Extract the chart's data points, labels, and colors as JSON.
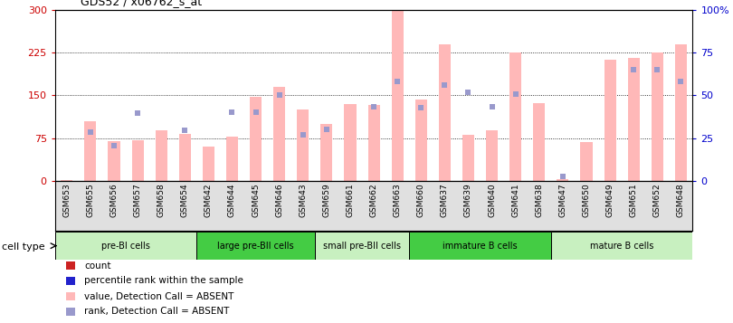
{
  "title": "GDS52 / x06762_s_at",
  "samples": [
    "GSM653",
    "GSM655",
    "GSM656",
    "GSM657",
    "GSM658",
    "GSM654",
    "GSM642",
    "GSM644",
    "GSM645",
    "GSM646",
    "GSM643",
    "GSM659",
    "GSM661",
    "GSM662",
    "GSM663",
    "GSM660",
    "GSM637",
    "GSM639",
    "GSM640",
    "GSM641",
    "GSM638",
    "GSM647",
    "GSM650",
    "GSM649",
    "GSM651",
    "GSM652",
    "GSM648"
  ],
  "bar_values": [
    2,
    105,
    70,
    72,
    88,
    82,
    60,
    78,
    148,
    165,
    125,
    100,
    135,
    133,
    298,
    143,
    240,
    80,
    88,
    225,
    137,
    3,
    68,
    212,
    215,
    225,
    240
  ],
  "dot_values": [
    0,
    85,
    62,
    118,
    0,
    88,
    0,
    120,
    120,
    150,
    80,
    90,
    0,
    130,
    175,
    128,
    168,
    155,
    130,
    152,
    0,
    8,
    0,
    0,
    195,
    195,
    175
  ],
  "left_ylim": [
    0,
    300
  ],
  "right_ylim": [
    0,
    100
  ],
  "left_yticks": [
    0,
    75,
    150,
    225,
    300
  ],
  "right_yticks": [
    0,
    25,
    50,
    75,
    100
  ],
  "right_yticklabels": [
    "0",
    "25",
    "50",
    "75",
    "100%"
  ],
  "cell_groups": [
    {
      "label": "pre-BI cells",
      "start": 0,
      "end": 6,
      "color": "#c8f0c0"
    },
    {
      "label": "large pre-BII cells",
      "start": 6,
      "end": 11,
      "color": "#44cc44"
    },
    {
      "label": "small pre-BII cells",
      "start": 11,
      "end": 15,
      "color": "#c8f0c0"
    },
    {
      "label": "immature B cells",
      "start": 15,
      "end": 21,
      "color": "#44cc44"
    },
    {
      "label": "mature B cells",
      "start": 21,
      "end": 27,
      "color": "#c8f0c0"
    }
  ],
  "bar_color_absent": "#ffb8b8",
  "dot_color_absent": "#9999cc",
  "tick_color_left": "#cc0000",
  "tick_color_right": "#0000cc",
  "legend_items": [
    {
      "label": "count",
      "color": "#cc2222"
    },
    {
      "label": "percentile rank within the sample",
      "color": "#2222cc"
    },
    {
      "label": "value, Detection Call = ABSENT",
      "color": "#ffb8b8"
    },
    {
      "label": "rank, Detection Call = ABSENT",
      "color": "#9999cc"
    }
  ],
  "cell_type_label": "cell type",
  "dot_marker_size": 4,
  "bar_width": 0.5,
  "xlabel_bg_color": "#d8d8d8",
  "xlabel_area_color": "#e0e0e0"
}
